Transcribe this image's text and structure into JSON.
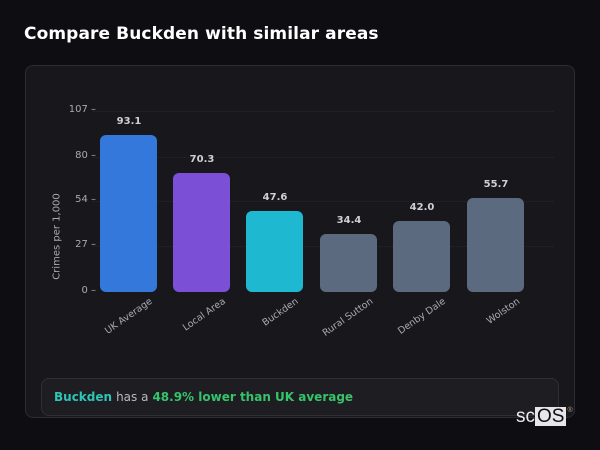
{
  "page": {
    "title": "Compare Buckden with similar areas"
  },
  "chart_data": {
    "type": "bar",
    "title": "Compare Buckden with similar areas",
    "xlabel": "",
    "ylabel": "Crimes per 1,000",
    "categories": [
      "UK Average",
      "Local Area",
      "Buckden",
      "Rural Sutton",
      "Denby Dale",
      "Wolston"
    ],
    "values": [
      93.1,
      70.3,
      47.6,
      34.4,
      42.0,
      55.7
    ],
    "value_labels": [
      "93.1",
      "70.3",
      "47.6",
      "34.4",
      "42.0",
      "55.7"
    ],
    "colors": [
      "#3478dc",
      "#7b4fd6",
      "#1fb8d1",
      "#5c6a80",
      "#5c6a80",
      "#5c6a80"
    ],
    "y_ticks": [
      0,
      27,
      54,
      80,
      107
    ],
    "ylim": [
      0,
      107
    ],
    "grid": true,
    "legend": null
  },
  "summary": {
    "area": "Buckden",
    "connector": "has a",
    "stat": "48.9% lower than UK average",
    "area_color": "#2ec4b6",
    "stat_color": "#36c46b"
  },
  "logo": {
    "prefix": "sc",
    "boxed": "OS",
    "mark": "®"
  }
}
